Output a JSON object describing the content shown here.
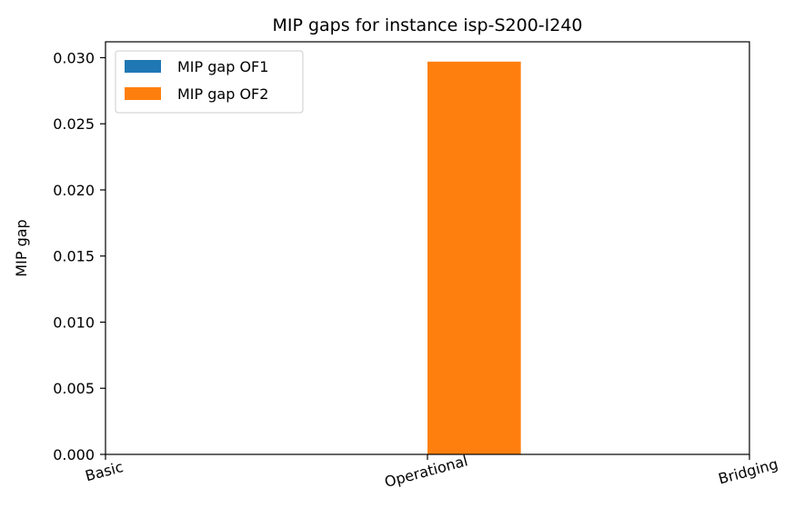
{
  "chart_data": {
    "type": "bar",
    "title": "MIP gaps for instance isp-S200-I240",
    "xlabel": "",
    "ylabel": "MIP gap",
    "categories": [
      "Basic",
      "Operational",
      "Bridging"
    ],
    "series": [
      {
        "name": "MIP gap OF1",
        "color": "#1f77b4",
        "values": [
          0.0,
          0.0,
          0.0
        ]
      },
      {
        "name": "MIP gap OF2",
        "color": "#ff7f0e",
        "values": [
          0.0,
          0.0297,
          0.0
        ]
      }
    ],
    "ylim": [
      0,
      0.0312
    ],
    "yticks": [
      "0.000",
      "0.005",
      "0.010",
      "0.015",
      "0.020",
      "0.025",
      "0.030"
    ],
    "xlim": [
      0,
      2
    ],
    "legend": "top-left",
    "grid": false
  }
}
